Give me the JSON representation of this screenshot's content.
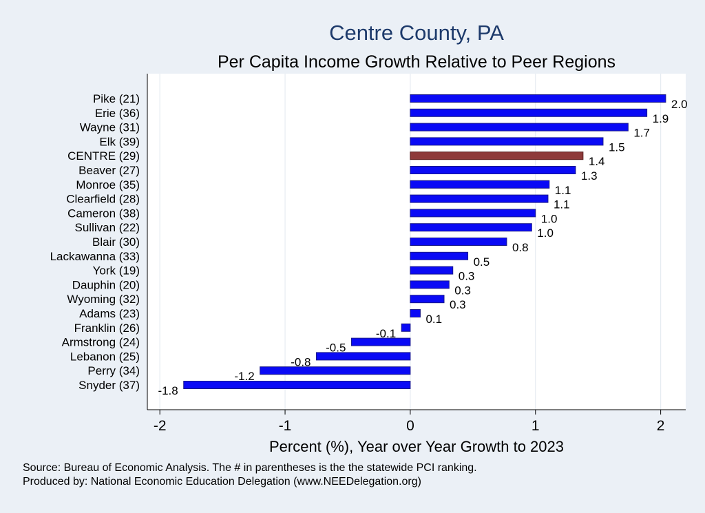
{
  "chart_data": {
    "type": "bar",
    "orientation": "horizontal",
    "title": "Centre County, PA",
    "subtitle": "Per Capita Income Growth Relative to Peer Regions",
    "xlabel": "Percent (%), Year over Year Growth to 2023",
    "ylabel": "",
    "xlim": [
      -2.1,
      2.2
    ],
    "xticks": [
      "-2",
      "-1",
      "0",
      "1",
      "2"
    ],
    "categories": [
      "Pike (21)",
      "Erie (36)",
      "Wayne (31)",
      "Elk (39)",
      "CENTRE (29)",
      "Beaver (27)",
      "Monroe (35)",
      "Clearfield (28)",
      "Cameron (38)",
      "Sullivan (22)",
      "Blair (30)",
      "Lackawanna (33)",
      "York (19)",
      "Dauphin (20)",
      "Wyoming (32)",
      "Adams (23)",
      "Franklin (26)",
      "Armstrong (24)",
      "Lebanon (25)",
      "Perry (34)",
      "Snyder (37)"
    ],
    "values": [
      2.04,
      1.89,
      1.74,
      1.54,
      1.38,
      1.32,
      1.11,
      1.1,
      1.0,
      0.97,
      0.77,
      0.46,
      0.34,
      0.31,
      0.27,
      0.08,
      -0.07,
      -0.47,
      -0.75,
      -1.2,
      -1.81
    ],
    "labels": [
      "2.0",
      "1.9",
      "1.7",
      "1.5",
      "1.4",
      "1.3",
      "1.1",
      "1.1",
      "1.0",
      "1.0",
      "0.8",
      "0.5",
      "0.3",
      "0.3",
      "0.3",
      "0.1",
      "-0.1",
      "-0.5",
      "-0.8",
      "-1.2",
      "-1.8"
    ],
    "highlight": "CENTRE (29)",
    "colors": {
      "bar": "#0a0af5",
      "highlight": "#8e3a3a",
      "bar_edge": "#1a1a8a",
      "grid": "#ffffff"
    },
    "grid": true
  },
  "footer": {
    "source": "Source: Bureau of Economic Analysis. The # in parentheses is the the statewide PCI ranking.",
    "producer": "Produced by: National Economic Education Delegation (www.NEEDelegation.org)"
  }
}
